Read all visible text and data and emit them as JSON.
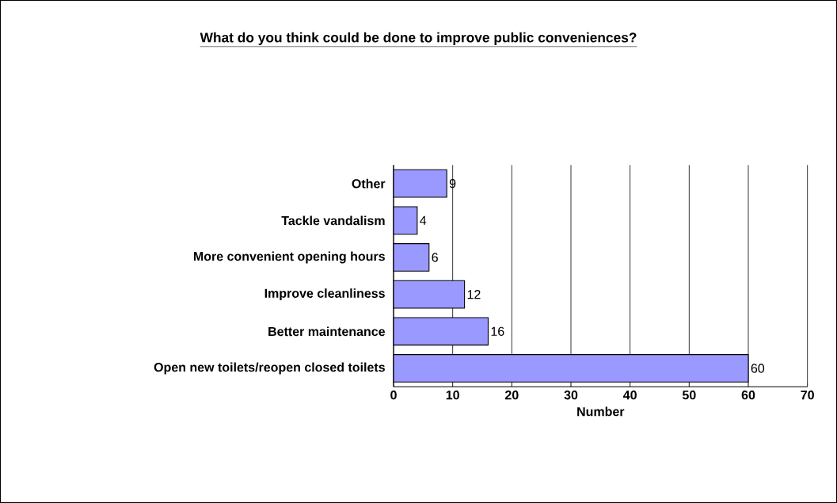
{
  "chart_data": {
    "type": "bar",
    "orientation": "horizontal",
    "title": "What do you think could be done to improve public conveniences?",
    "categories": [
      "Other",
      "Tackle vandalism",
      "More convenient opening hours",
      "Improve cleanliness",
      "Better maintenance",
      "Open new toilets/reopen closed toilets"
    ],
    "values": [
      9,
      4,
      6,
      12,
      16,
      60
    ],
    "color": "#9999ff",
    "xlabel": "Number",
    "xlim": [
      0,
      70
    ],
    "xticks": [
      0,
      10,
      20,
      30,
      40,
      50,
      60,
      70
    ],
    "grid": "x",
    "data_labels": true
  }
}
